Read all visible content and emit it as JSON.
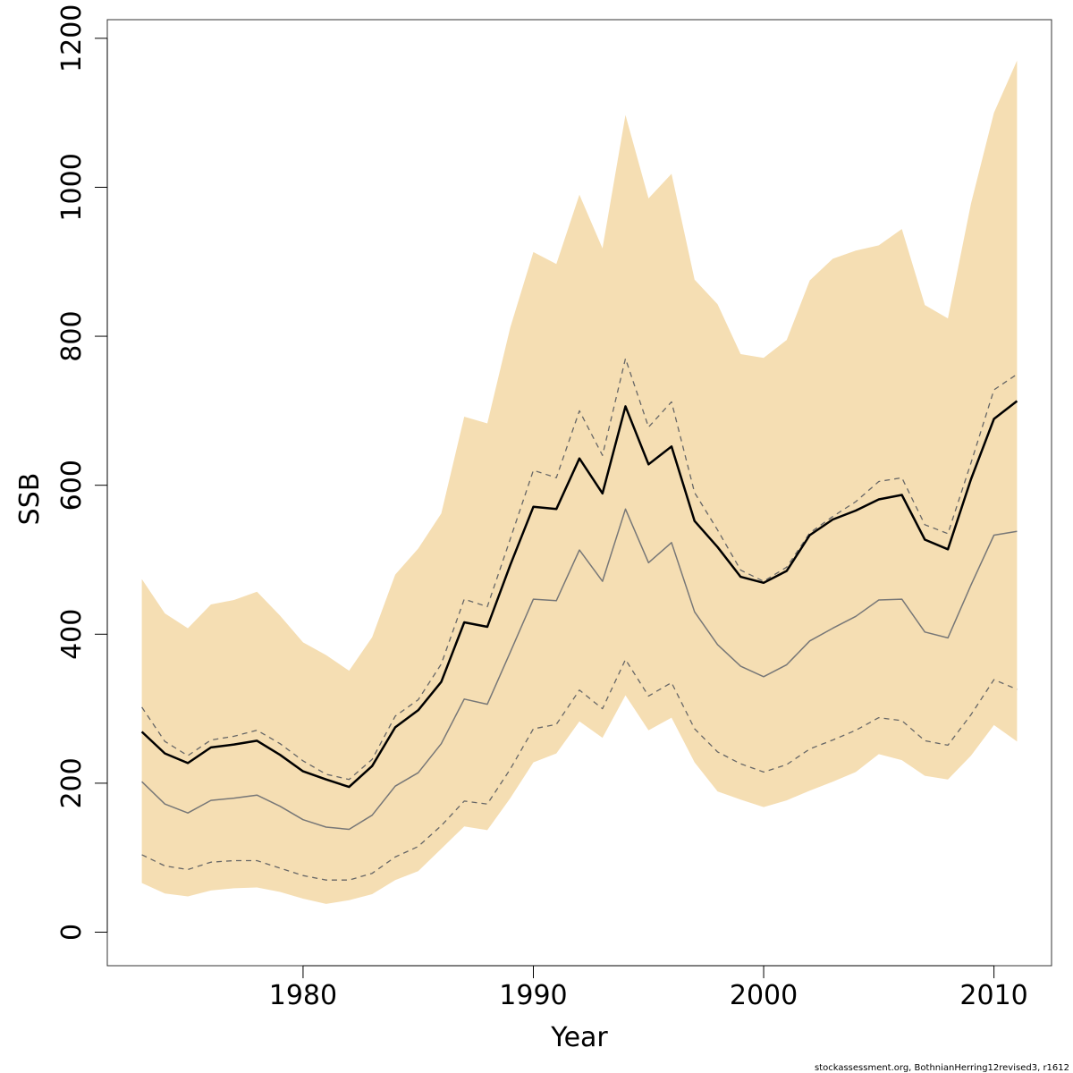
{
  "chart_data": {
    "type": "line",
    "xlabel": "Year",
    "ylabel": "SSB",
    "xlim": [
      1971.5,
      2012.5
    ],
    "ylim": [
      -45,
      1225
    ],
    "x_ticks": [
      1980,
      1990,
      2000,
      2010
    ],
    "y_ticks": [
      0,
      200,
      400,
      600,
      800,
      1000,
      1200
    ],
    "grid": false,
    "legend": "none",
    "band_color": "#f5deb3",
    "x": [
      1973,
      1974,
      1975,
      1976,
      1977,
      1978,
      1979,
      1980,
      1981,
      1982,
      1983,
      1984,
      1985,
      1986,
      1987,
      1988,
      1989,
      1990,
      1991,
      1992,
      1993,
      1994,
      1995,
      1996,
      1997,
      1998,
      1999,
      2000,
      2001,
      2002,
      2003,
      2004,
      2005,
      2006,
      2007,
      2008,
      2009,
      2010,
      2011
    ],
    "band": {
      "upper": [
        474,
        428,
        408,
        440,
        446,
        457,
        425,
        389,
        372,
        351,
        396,
        480,
        515,
        562,
        692,
        683,
        812,
        913,
        897,
        990,
        918,
        1097,
        985,
        1018,
        876,
        843,
        776,
        771,
        795,
        875,
        904,
        915,
        922,
        944,
        842,
        824,
        978,
        1100,
        1170
      ],
      "lower": [
        66,
        52,
        48,
        56,
        59,
        60,
        54,
        45,
        38,
        43,
        51,
        70,
        82,
        112,
        142,
        137,
        180,
        228,
        240,
        283,
        261,
        318,
        271,
        288,
        228,
        189,
        178,
        168,
        177,
        190,
        202,
        215,
        239,
        231,
        210,
        205,
        237,
        278,
        256
      ]
    },
    "series": [
      {
        "values": [
          269,
          240,
          227,
          248,
          252,
          257,
          238,
          216,
          205,
          195,
          223,
          275,
          298,
          336,
          416,
          410,
          493,
          571,
          568,
          636,
          589,
          706,
          628,
          652,
          552,
          517,
          477,
          469,
          485,
          533,
          554,
          566,
          581,
          587,
          527,
          514,
          608,
          689,
          713
        ],
        "color": "#000000",
        "width": 2.5,
        "dash": ""
      },
      {
        "values": [
          302,
          256,
          237,
          258,
          263,
          271,
          253,
          230,
          212,
          205,
          232,
          290,
          312,
          360,
          447,
          437,
          528,
          620,
          610,
          700,
          640,
          770,
          678,
          712,
          590,
          540,
          486,
          471,
          490,
          536,
          558,
          578,
          605,
          610,
          547,
          535,
          630,
          728,
          749
        ],
        "color": "#666666",
        "width": 1.3,
        "dash": "6,5"
      },
      {
        "values": [
          202,
          172,
          160,
          177,
          180,
          184,
          169,
          151,
          141,
          138,
          157,
          196,
          214,
          253,
          313,
          306,
          376,
          447,
          445,
          513,
          471,
          568,
          496,
          523,
          430,
          386,
          357,
          343,
          359,
          391,
          408,
          424,
          446,
          447,
          403,
          395,
          466,
          533,
          538
        ],
        "color": "#777777",
        "width": 1.5,
        "dash": ""
      },
      {
        "values": [
          104,
          89,
          84,
          94,
          96,
          96,
          86,
          76,
          70,
          70,
          79,
          101,
          115,
          143,
          176,
          172,
          219,
          273,
          279,
          325,
          300,
          366,
          317,
          335,
          273,
          242,
          226,
          215,
          225,
          246,
          258,
          271,
          288,
          284,
          257,
          251,
          292,
          339,
          326
        ],
        "color": "#666666",
        "width": 1.3,
        "dash": "6,5"
      }
    ]
  },
  "footer": {
    "note": "stockassessment.org, BothnianHerring12revised3, r1612"
  }
}
